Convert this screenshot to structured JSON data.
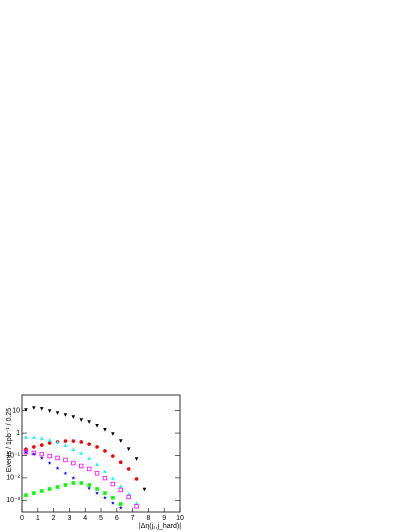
{
  "chart_data": {
    "type": "scatter",
    "xlabel": "|Δη(j₁,j_hard)|",
    "ylabel": "Events / 1pb⁻¹ / 0.25",
    "log_y": true,
    "xlim": [
      0,
      10
    ],
    "xticks": [
      0,
      1,
      2,
      3,
      4,
      5,
      6,
      7,
      8,
      9,
      10
    ],
    "ylim": [
      0.0003,
      50
    ],
    "yticks": [
      {
        "value": 0.001,
        "label": "10⁻³"
      },
      {
        "value": 0.01,
        "label": "10⁻²"
      },
      {
        "value": 0.1,
        "label": "10⁻¹"
      },
      1,
      10
    ],
    "series": [
      {
        "color": "#000000",
        "marker": "triangle-down",
        "x": [
          0.25,
          0.75,
          1.25,
          1.75,
          2.25,
          2.75,
          3.25,
          3.75,
          4.25,
          4.75,
          5.25,
          5.75,
          6.25,
          6.75,
          7.25,
          7.75
        ],
        "values": [
          10.7,
          13,
          12,
          9.6,
          7.8,
          6.4,
          5.2,
          3.8,
          3.1,
          2.1,
          1.4,
          0.9,
          0.44,
          0.19,
          0.069,
          0.003
        ]
      },
      {
        "color": "#ff0000",
        "marker": "circle",
        "x": [
          0.25,
          0.75,
          1.25,
          1.75,
          2.25,
          2.75,
          3.25,
          3.75,
          4.25,
          4.75,
          5.25,
          5.75,
          6.25,
          6.75,
          7.25
        ],
        "values": [
          0.19,
          0.24,
          0.29,
          0.36,
          0.4,
          0.44,
          0.44,
          0.4,
          0.32,
          0.24,
          0.16,
          0.094,
          0.05,
          0.025,
          0.009
        ]
      },
      {
        "color": "#00ffff",
        "marker": "triangle",
        "x": [
          0.25,
          0.75,
          1.25,
          1.75,
          2.25,
          2.75,
          3.25,
          3.75,
          4.25,
          4.75,
          5.25,
          5.75,
          6.25,
          6.75,
          7.25
        ],
        "values": [
          0.66,
          0.66,
          0.6,
          0.49,
          0.4,
          0.29,
          0.19,
          0.13,
          0.077,
          0.041,
          0.02,
          0.0098,
          0.0043,
          0.0019,
          0.00075
        ]
      },
      {
        "color": "#ff00ff",
        "marker": "square-open",
        "x": [
          0.25,
          0.75,
          1.25,
          1.75,
          2.25,
          2.75,
          3.25,
          3.75,
          4.25,
          4.75,
          5.25,
          5.75,
          6.25,
          6.75,
          7.25
        ],
        "values": [
          0.14,
          0.13,
          0.115,
          0.094,
          0.077,
          0.063,
          0.046,
          0.034,
          0.025,
          0.016,
          0.0098,
          0.0053,
          0.0029,
          0.0014,
          0.00054
        ]
      },
      {
        "color": "#0000ff",
        "marker": "star",
        "x": [
          0.25,
          0.75,
          1.25,
          1.75,
          2.25,
          2.75,
          3.25,
          3.75,
          4.25,
          4.75,
          5.25,
          5.75,
          6.25
        ],
        "values": [
          0.14,
          0.115,
          0.077,
          0.046,
          0.027,
          0.016,
          0.0098,
          0.0059,
          0.0035,
          0.0021,
          0.0013,
          0.00075,
          0.00046
        ]
      },
      {
        "color": "#00ff00",
        "marker": "square",
        "x": [
          0.25,
          0.75,
          1.25,
          1.75,
          2.25,
          2.75,
          3.25,
          3.75,
          4.25,
          4.75,
          5.25,
          5.75,
          6.25
        ],
        "values": [
          0.0017,
          0.0021,
          0.0026,
          0.0032,
          0.0039,
          0.0048,
          0.0059,
          0.0059,
          0.0048,
          0.0032,
          0.0021,
          0.0013,
          0.00068
        ]
      }
    ]
  }
}
